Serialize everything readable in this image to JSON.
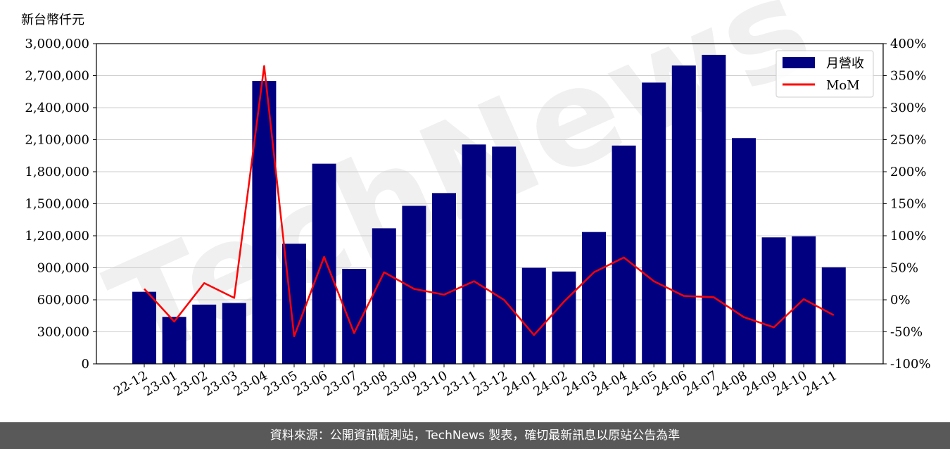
{
  "chart_data": {
    "type": "bar",
    "ylabel": "新台幣仟元",
    "categories": [
      "22-12",
      "23-01",
      "23-02",
      "23-03",
      "23-04",
      "23-05",
      "23-06",
      "23-07",
      "23-08",
      "23-09",
      "23-10",
      "23-11",
      "23-12",
      "24-01",
      "24-02",
      "24-03",
      "24-04",
      "24-05",
      "24-06",
      "24-07",
      "24-08",
      "24-09",
      "24-10",
      "24-11"
    ],
    "series": [
      {
        "name": "月營收",
        "type": "bar",
        "axis": "left",
        "color": "#000080",
        "values": [
          675000,
          440000,
          555000,
          570000,
          2650000,
          1125000,
          1875000,
          890000,
          1270000,
          1480000,
          1600000,
          2055000,
          2035000,
          900000,
          865000,
          1235000,
          2045000,
          2635000,
          2795000,
          2895000,
          2115000,
          1185000,
          1195000,
          905000
        ]
      },
      {
        "name": "MoM",
        "type": "line",
        "axis": "right",
        "color": "#ff0000",
        "values": [
          17,
          -34,
          26,
          3,
          365,
          -57,
          67,
          -52,
          43,
          17,
          8,
          29,
          0,
          -55,
          -3,
          43,
          66,
          29,
          6,
          4,
          -27,
          -43,
          1,
          -24
        ]
      }
    ],
    "y_left": {
      "min": 0,
      "max": 3000000,
      "ticks": [
        "0",
        "300,000",
        "600,000",
        "900,000",
        "1,200,000",
        "1,500,000",
        "1,800,000",
        "2,100,000",
        "2,400,000",
        "2,700,000",
        "3,000,000"
      ]
    },
    "y_right": {
      "min": -100,
      "max": 400,
      "ticks": [
        "-100%",
        "-50%",
        "0%",
        "50%",
        "100%",
        "150%",
        "200%",
        "250%",
        "300%",
        "350%",
        "400%"
      ]
    },
    "grid": true,
    "legend": "top-right",
    "watermark": "TechNews"
  },
  "footer": {
    "source": "資料來源：公開資訊觀測站，TechNews 製表，確切最新訊息以原站公告為準"
  }
}
